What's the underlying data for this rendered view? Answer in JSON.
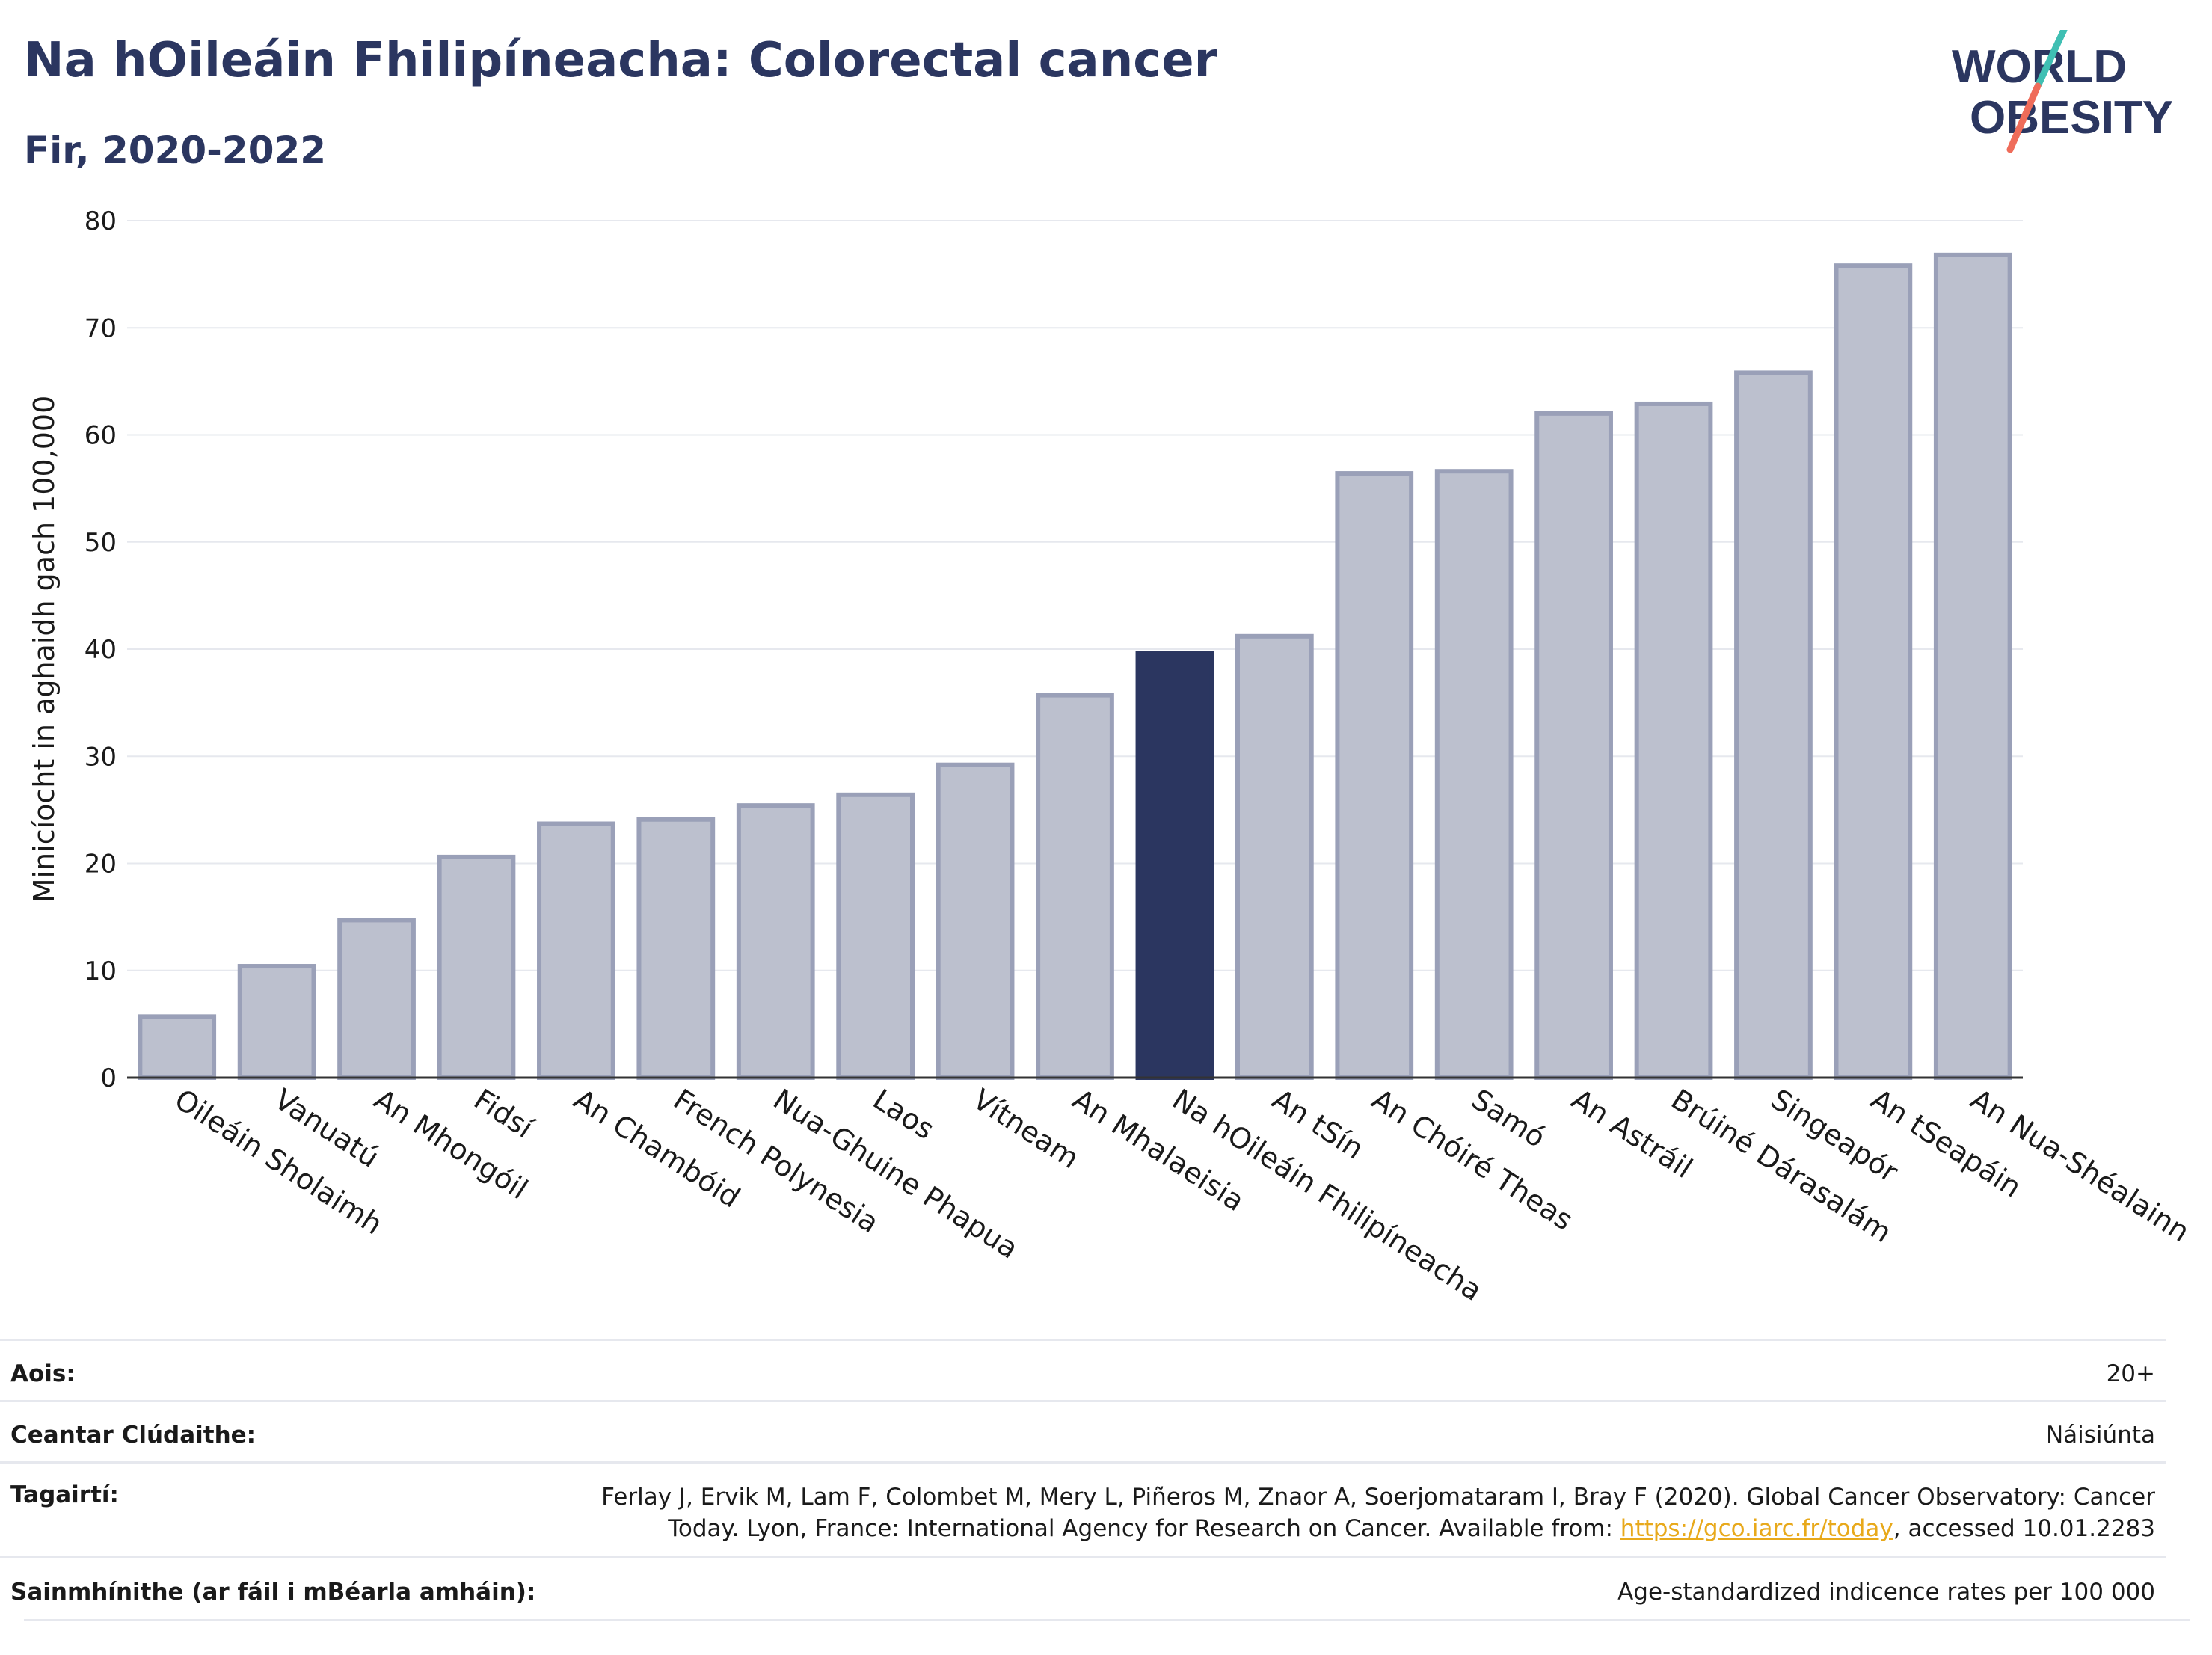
{
  "header": {
    "title": "Na hOileáin Fhilipíneacha: Colorectal cancer",
    "subtitle": "Fir, 2020-2022"
  },
  "logo": {
    "line1": "WORLD",
    "line2": "OBESITY",
    "slash_colors": [
      "#3fbfb3",
      "#ef6c5a"
    ],
    "text_color": "#2b3660"
  },
  "colors": {
    "bar": "#bcc0ce",
    "bar_border": "#9aa0b8",
    "highlight": "#2b3660",
    "grid": "#e6e8ee",
    "axis": "#333333"
  },
  "chart_data": {
    "type": "bar",
    "ylabel": "Minicíocht in aghaidh gach 100,000",
    "ylim": [
      0,
      80
    ],
    "yticks": [
      0,
      10,
      20,
      30,
      40,
      50,
      60,
      70,
      80
    ],
    "grid": true,
    "highlight_category": "Na hOileáin Fhilipíneacha",
    "categories": [
      "Oileáin Sholaimh",
      "Vanuatú",
      "An Mhongóil",
      "Fidsí",
      "An Chambóid",
      "French Polynesia",
      "Nua-Ghuine Phapua",
      "Laos",
      "Vítneam",
      "An Mhalaeisia",
      "Na hOileáin Fhilipíneacha",
      "An tSín",
      "An Chóiré Theas",
      "Samó",
      "An Astráil",
      "Brúiné Dárasalám",
      "Singeapór",
      "An tSeapáin",
      "An Nua-Shéalainn"
    ],
    "values": [
      5.7,
      10.4,
      14.7,
      20.6,
      23.7,
      24.1,
      25.4,
      26.4,
      29.2,
      35.7,
      39.6,
      41.2,
      56.4,
      56.6,
      62.0,
      62.9,
      65.8,
      75.8,
      76.8
    ]
  },
  "meta": {
    "rows": [
      {
        "label": "Aois:",
        "value": "20+"
      },
      {
        "label": "Ceantar Clúdaithe:",
        "value": "Náisiúnta"
      },
      {
        "label": "Tagairtí:",
        "value_line1": "Ferlay J, Ervik M, Lam F, Colombet M, Mery L, Piñeros M, Znaor A, Soerjomataram I, Bray F (2020). Global Cancer Observatory: Cancer",
        "value_line2_pre": "Today. Lyon, France: International Agency for Research on Cancer. Available from: ",
        "link": "https://gco.iarc.fr/today",
        "value_line2_post": ", accessed 10.01.2283"
      },
      {
        "label": "Sainmhínithe (ar fáil i mBéarla amháin):",
        "value": "Age-standardized indicence rates per 100 000"
      }
    ]
  }
}
